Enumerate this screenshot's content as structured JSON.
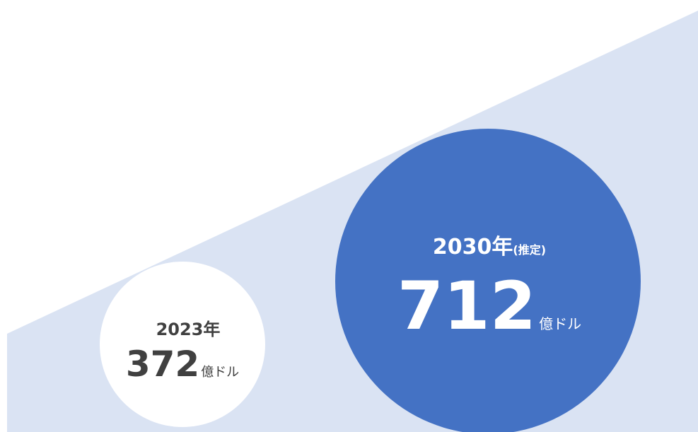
{
  "left": {
    "year": "2023年",
    "value": 372,
    "unit": "億ドル"
  },
  "right": {
    "year": "2030年",
    "note": "(推定)",
    "value": 712,
    "unit": "億ドル"
  }
}
